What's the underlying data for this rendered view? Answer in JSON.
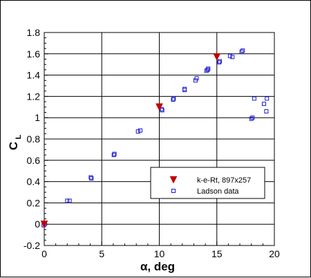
{
  "chart_data": {
    "type": "scatter",
    "xlabel": "α, deg",
    "ylabel_main": "C",
    "ylabel_sub": "L",
    "xlim": [
      0,
      20
    ],
    "ylim": [
      -0.2,
      1.8
    ],
    "x_ticks": [
      0,
      5,
      10,
      15,
      20
    ],
    "y_ticks": [
      -0.2,
      0,
      0.2,
      0.4,
      0.6,
      0.8,
      1,
      1.2,
      1.4,
      1.6,
      1.8
    ],
    "x_tick_labels": [
      "0",
      "5",
      "10",
      "15",
      "20"
    ],
    "y_tick_labels": [
      "-0.2",
      "0",
      "0.2",
      "0.4",
      "0.6",
      "0.8",
      "1",
      "1.2",
      "1.4",
      "1.6",
      "1.8"
    ],
    "grid": true,
    "legend_position": "lower-right",
    "series": [
      {
        "name": "k-e-Rt, 897x257",
        "marker": "triangle-down",
        "color": "#c00000",
        "points": [
          [
            0,
            0.0
          ],
          [
            10,
            1.1
          ],
          [
            15,
            1.57
          ]
        ]
      },
      {
        "name": "Ladson data",
        "marker": "square-open",
        "color": "#1a1acd",
        "points": [
          [
            -0.05,
            -0.01
          ],
          [
            0.05,
            0.0
          ],
          [
            2.0,
            0.22
          ],
          [
            2.2,
            0.22
          ],
          [
            4.05,
            0.44
          ],
          [
            4.1,
            0.43
          ],
          [
            6.05,
            0.65
          ],
          [
            6.1,
            0.66
          ],
          [
            8.15,
            0.87
          ],
          [
            8.35,
            0.88
          ],
          [
            10.2,
            1.08
          ],
          [
            10.25,
            1.07
          ],
          [
            11.2,
            1.17
          ],
          [
            11.25,
            1.18
          ],
          [
            12.2,
            1.26
          ],
          [
            12.2,
            1.27
          ],
          [
            13.15,
            1.35
          ],
          [
            13.25,
            1.37
          ],
          [
            14.1,
            1.44
          ],
          [
            14.2,
            1.45
          ],
          [
            14.25,
            1.46
          ],
          [
            15.2,
            1.52
          ],
          [
            15.25,
            1.53
          ],
          [
            16.15,
            1.58
          ],
          [
            16.35,
            1.57
          ],
          [
            17.15,
            1.62
          ],
          [
            17.25,
            1.63
          ],
          [
            18.0,
            0.99
          ],
          [
            18.1,
            1.0
          ],
          [
            18.25,
            1.18
          ],
          [
            19.1,
            1.13
          ],
          [
            19.3,
            1.06
          ],
          [
            19.35,
            1.18
          ]
        ]
      }
    ]
  }
}
